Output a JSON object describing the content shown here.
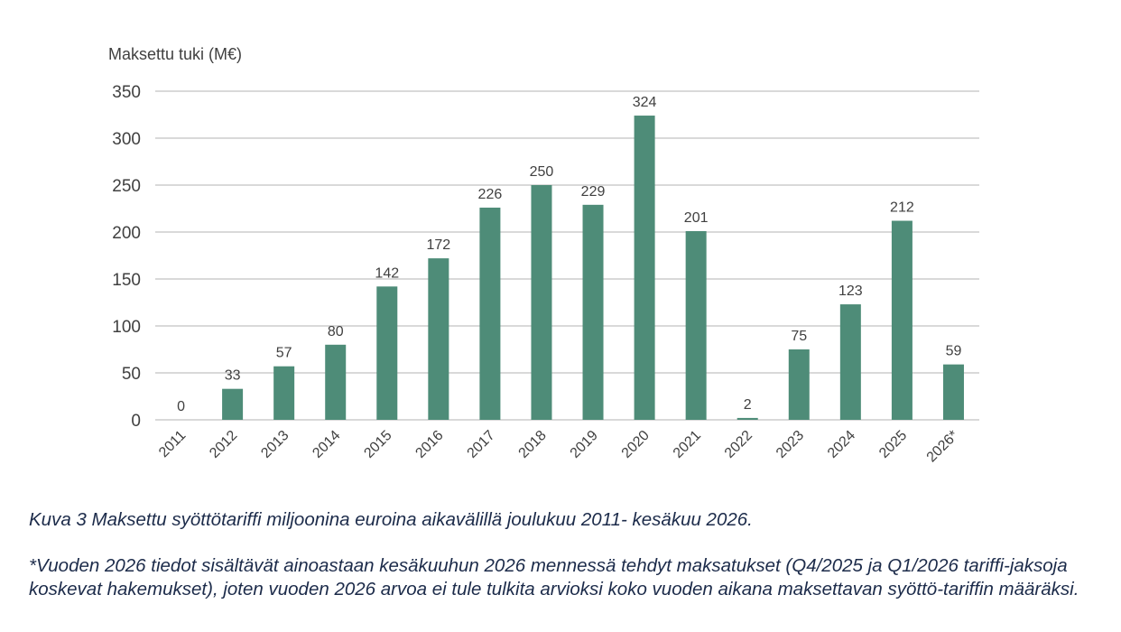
{
  "colors": {
    "bar": "#4e8c78",
    "grid": "#d9d9d9",
    "text": "#404040",
    "caption": "#1c2b4a"
  },
  "chart_data": {
    "type": "bar",
    "title": "",
    "ylabel": "Maksettu tuki (M€)",
    "xlabel": "",
    "categories": [
      "2011",
      "2012",
      "2013",
      "2014",
      "2015",
      "2016",
      "2017",
      "2018",
      "2019",
      "2020",
      "2021",
      "2022",
      "2023",
      "2024",
      "2025",
      "2026*"
    ],
    "values": [
      0,
      33,
      57,
      80,
      142,
      172,
      226,
      250,
      229,
      324,
      201,
      2,
      75,
      123,
      212,
      59
    ],
    "ylim": [
      0,
      350
    ],
    "yticks": [
      0,
      50,
      100,
      150,
      200,
      250,
      300,
      350
    ],
    "grid": true,
    "legend": "none"
  },
  "captions": {
    "main": "Kuva 3 Maksettu syöttötariffi miljoonina euroina aikavälillä joulukuu 2011- kesäkuu 2026.",
    "note": "*Vuoden 2026 tiedot sisältävät ainoastaan kesäkuuhun 2026 mennessä tehdyt maksatukset (Q4/2025 ja Q1/2026 tariffi-jaksoja koskevat hakemukset), joten vuoden 2026 arvoa ei tule tulkita arvioksi koko vuoden aikana maksettavan syöttö-tariffin määräksi."
  }
}
